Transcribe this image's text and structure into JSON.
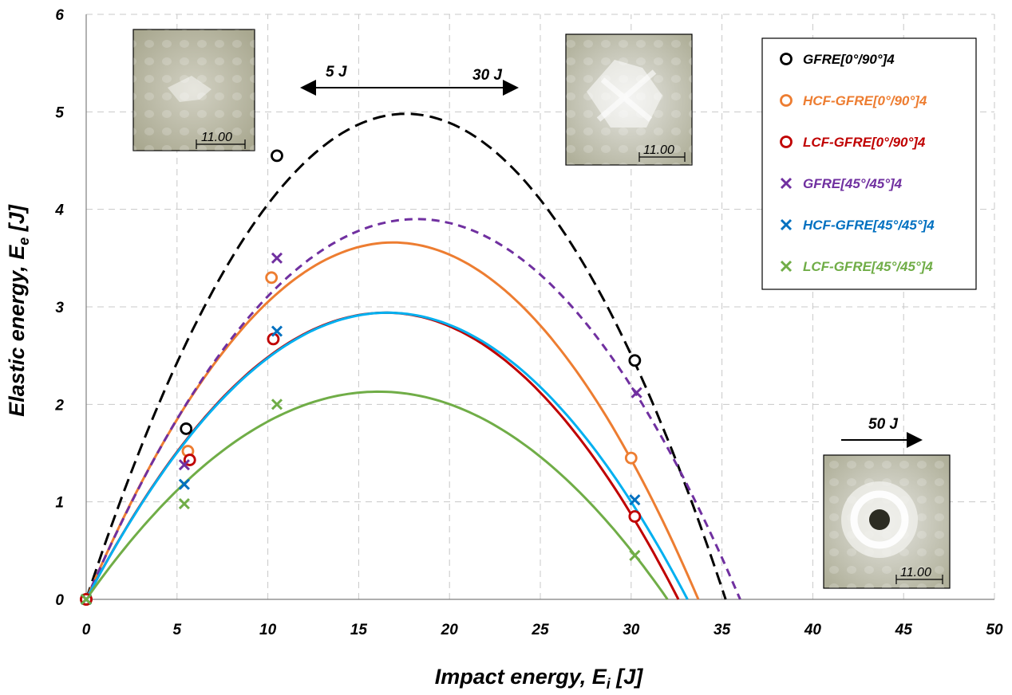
{
  "chart_data": {
    "type": "scatter",
    "xlabel": "Impact energy, E",
    "xlabel_sub": "i",
    "xlabel_unit": " [J]",
    "ylabel": "Elastic energy, E",
    "ylabel_sub": "e",
    "ylabel_unit": " [J]",
    "xlim": [
      0,
      50
    ],
    "ylim": [
      0,
      6
    ],
    "xticks": [
      0,
      5,
      10,
      15,
      20,
      25,
      30,
      35,
      40,
      45,
      50
    ],
    "yticks": [
      0,
      1,
      2,
      3,
      4,
      5,
      6
    ],
    "grid": "dashed",
    "legend_position": "top-right",
    "series": [
      {
        "name": "GFRE[0°/90°]4",
        "marker": "circle",
        "color": "#000000",
        "line_style": "dashed",
        "points": [
          [
            0,
            0
          ],
          [
            5.5,
            1.75
          ],
          [
            10.5,
            4.55
          ],
          [
            30.2,
            2.45
          ]
        ],
        "fit": {
          "peak_x": 17.6,
          "peak_y": 4.98,
          "zero_x": 35.2
        }
      },
      {
        "name": "HCF-GFRE[0°/90°]4",
        "marker": "circle",
        "color": "#ED7D31",
        "line_style": "solid",
        "points": [
          [
            0,
            0
          ],
          [
            5.6,
            1.52
          ],
          [
            10.2,
            3.3
          ],
          [
            30,
            1.45
          ]
        ],
        "fit": {
          "peak_x": 16.9,
          "peak_y": 3.66,
          "zero_x": 33.7
        }
      },
      {
        "name": "LCF-GFRE[0°/90°]4",
        "marker": "circle",
        "color": "#C00000",
        "line_style": "solid",
        "points": [
          [
            0,
            0
          ],
          [
            5.7,
            1.43
          ],
          [
            10.3,
            2.67
          ],
          [
            30.2,
            0.85
          ]
        ],
        "fit": {
          "peak_x": 16.5,
          "peak_y": 2.94,
          "zero_x": 32.6
        }
      },
      {
        "name": "GFRE[45°/45°]4",
        "marker": "x",
        "color": "#7030A0",
        "line_style": "dashed",
        "points": [
          [
            0,
            0
          ],
          [
            5.4,
            1.38
          ],
          [
            10.5,
            3.5
          ],
          [
            30.3,
            2.12
          ]
        ],
        "fit": {
          "peak_x": 18.2,
          "peak_y": 3.9,
          "zero_x": 36
        }
      },
      {
        "name": "HCF-GFRE[45°/45°]4",
        "marker": "x",
        "color": "#0070C0",
        "line_style": "solid",
        "points": [
          [
            0,
            0
          ],
          [
            5.4,
            1.18
          ],
          [
            10.5,
            2.75
          ],
          [
            30.2,
            1.02
          ]
        ],
        "fit": {
          "peak_x": 16.6,
          "peak_y": 2.94,
          "zero_x": 33.1
        }
      },
      {
        "name": "LCF-GFRE[45°/45°]4",
        "marker": "x",
        "color": "#70AD47",
        "line_style": "solid",
        "points": [
          [
            0,
            0
          ],
          [
            5.4,
            0.98
          ],
          [
            10.5,
            2.0
          ],
          [
            30.2,
            0.45
          ]
        ],
        "fit": {
          "peak_x": 16.1,
          "peak_y": 2.13,
          "zero_x": 32
        }
      }
    ],
    "fit_curve_colors": {
      "LCF-GFRE[45°/45°]4": "#70AD47",
      "HCF-GFRE[45°/45°]4": "#00B0F0"
    },
    "annotations": {
      "left_label": "5 J",
      "right_label": "30 J",
      "bottom_label": "50 J",
      "scale_label": "11.00"
    }
  },
  "photos": [
    {
      "name": "5 J",
      "scale": "11.00"
    },
    {
      "name": "30 J",
      "scale": "11.00"
    },
    {
      "name": "50 J",
      "scale": "11.00"
    }
  ]
}
